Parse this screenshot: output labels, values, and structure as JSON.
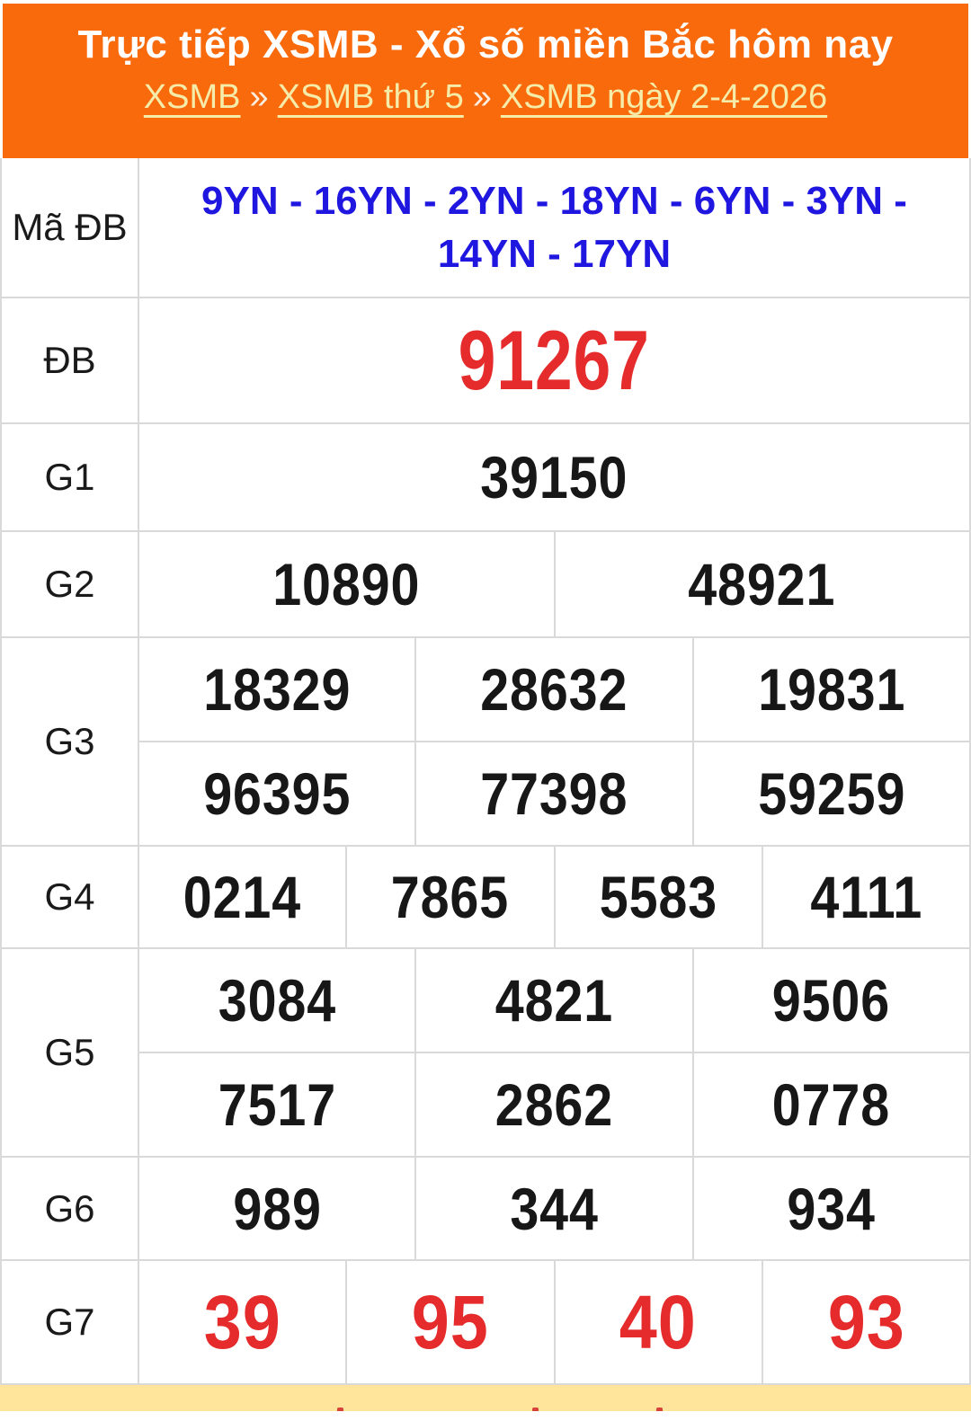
{
  "header": {
    "title": "Trực tiếp XSMB - Xổ số miền Bắc hôm nay",
    "separator": "»",
    "breadcrumb": [
      {
        "label": "XSMB"
      },
      {
        "label": "XSMB thứ 5"
      },
      {
        "label": "XSMB ngày 2-4-2026"
      }
    ]
  },
  "table": {
    "rows": [
      {
        "label": "Mã ĐB",
        "cells": [
          "9YN - 16YN - 2YN - 18YN - 6YN - 3YN - 14YN - 17YN"
        ]
      },
      {
        "label": "ĐB",
        "cells": [
          "91267"
        ]
      },
      {
        "label": "G1",
        "cells": [
          "39150"
        ]
      },
      {
        "label": "G2",
        "cells": [
          "10890",
          "48921"
        ]
      },
      {
        "label": "G3",
        "sub": [
          [
            "18329",
            "28632",
            "19831"
          ],
          [
            "96395",
            "77398",
            "59259"
          ]
        ]
      },
      {
        "label": "G4",
        "cells": [
          "0214",
          "7865",
          "5583",
          "4111"
        ]
      },
      {
        "label": "G5",
        "sub": [
          [
            "3084",
            "4821",
            "9506"
          ],
          [
            "7517",
            "2862",
            "0778"
          ]
        ]
      },
      {
        "label": "G6",
        "cells": [
          "989",
          "344",
          "934"
        ]
      },
      {
        "label": "G7",
        "cells": [
          "39",
          "95",
          "40",
          "93"
        ]
      }
    ]
  },
  "colors": {
    "banner_orange": "#f96a0d",
    "breadcrumb_yellow": "#f6eca9",
    "code_blue": "#1f16e0",
    "number_red": "#e52b2b",
    "number_black": "#171717",
    "border_gray": "#d9d9d9",
    "footer_yellow": "#ffe59b"
  }
}
